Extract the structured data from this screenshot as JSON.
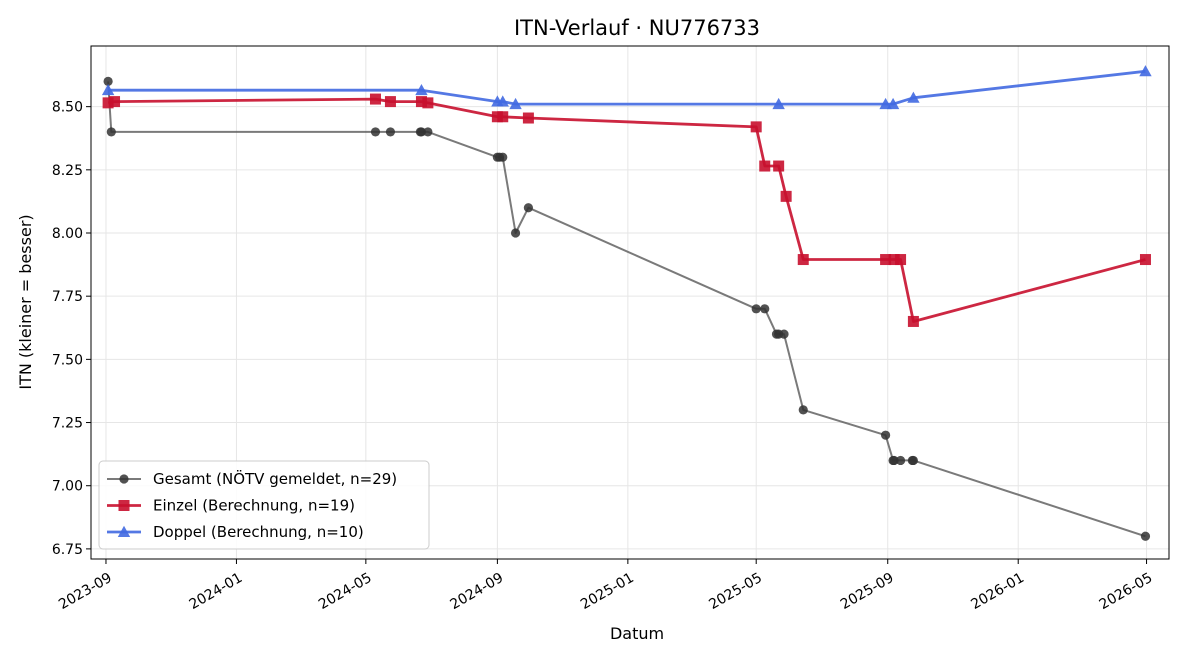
{
  "chart_data": {
    "type": "line",
    "title": "ITN-Verlauf · NU776733",
    "xlabel": "Datum",
    "ylabel": "ITN  (kleiner = besser)",
    "xlim": [
      "2023-08-18",
      "2026-05-22"
    ],
    "ylim": [
      6.71,
      8.74
    ],
    "x_ticks": [
      "2023-09",
      "2024-01",
      "2024-05",
      "2024-09",
      "2025-01",
      "2025-05",
      "2025-09",
      "2026-01",
      "2026-05"
    ],
    "y_ticks": [
      "6.75",
      "7.00",
      "7.25",
      "7.50",
      "7.75",
      "8.00",
      "8.25",
      "8.50"
    ],
    "grid": true,
    "legend_position": "lower-left",
    "series": [
      {
        "name": "Gesamt (NÖTV gemeldet, n=29)",
        "color": "#555555",
        "marker": "circle",
        "points": [
          [
            "2023-09-03",
            8.6
          ],
          [
            "2023-09-06",
            8.4
          ],
          [
            "2024-05-10",
            8.4
          ],
          [
            "2024-05-24",
            8.4
          ],
          [
            "2024-06-21",
            8.4
          ],
          [
            "2024-06-22",
            8.4
          ],
          [
            "2024-06-28",
            8.4
          ],
          [
            "2024-09-01",
            8.3
          ],
          [
            "2024-09-03",
            8.3
          ],
          [
            "2024-09-06",
            8.3
          ],
          [
            "2024-09-18",
            8.0
          ],
          [
            "2024-09-30",
            8.1
          ],
          [
            "2025-05-01",
            7.7
          ],
          [
            "2025-05-09",
            7.7
          ],
          [
            "2025-05-20",
            7.6
          ],
          [
            "2025-05-22",
            7.6
          ],
          [
            "2025-05-27",
            7.6
          ],
          [
            "2025-06-14",
            7.3
          ],
          [
            "2025-08-30",
            7.2
          ],
          [
            "2025-09-06",
            7.1
          ],
          [
            "2025-09-07",
            7.1
          ],
          [
            "2025-09-13",
            7.1
          ],
          [
            "2025-09-24",
            7.1
          ],
          [
            "2025-09-25",
            7.1
          ],
          [
            "2026-04-30",
            6.8
          ]
        ]
      },
      {
        "name": "Einzel (Berechnung, n=19)",
        "color": "#c8102e",
        "marker": "square",
        "points": [
          [
            "2023-09-03",
            8.515
          ],
          [
            "2023-09-09",
            8.52
          ],
          [
            "2024-05-10",
            8.53
          ],
          [
            "2024-05-24",
            8.52
          ],
          [
            "2024-06-22",
            8.52
          ],
          [
            "2024-06-28",
            8.515
          ],
          [
            "2024-09-01",
            8.46
          ],
          [
            "2024-09-06",
            8.46
          ],
          [
            "2024-09-30",
            8.455
          ],
          [
            "2025-05-01",
            8.42
          ],
          [
            "2025-05-09",
            8.265
          ],
          [
            "2025-05-22",
            8.265
          ],
          [
            "2025-05-29",
            8.145
          ],
          [
            "2025-06-14",
            7.895
          ],
          [
            "2025-08-30",
            7.895
          ],
          [
            "2025-09-07",
            7.895
          ],
          [
            "2025-09-13",
            7.895
          ],
          [
            "2025-09-25",
            7.65
          ],
          [
            "2026-04-30",
            7.895
          ]
        ]
      },
      {
        "name": "Doppel (Berechnung, n=10)",
        "color": "#4169e1",
        "marker": "triangle",
        "points": [
          [
            "2023-09-03",
            8.565
          ],
          [
            "2024-06-22",
            8.565
          ],
          [
            "2024-09-01",
            8.52
          ],
          [
            "2024-09-06",
            8.52
          ],
          [
            "2024-09-18",
            8.51
          ],
          [
            "2025-05-22",
            8.51
          ],
          [
            "2025-08-30",
            8.51
          ],
          [
            "2025-09-06",
            8.51
          ],
          [
            "2025-09-25",
            8.535
          ],
          [
            "2026-04-30",
            8.64
          ]
        ]
      }
    ]
  }
}
